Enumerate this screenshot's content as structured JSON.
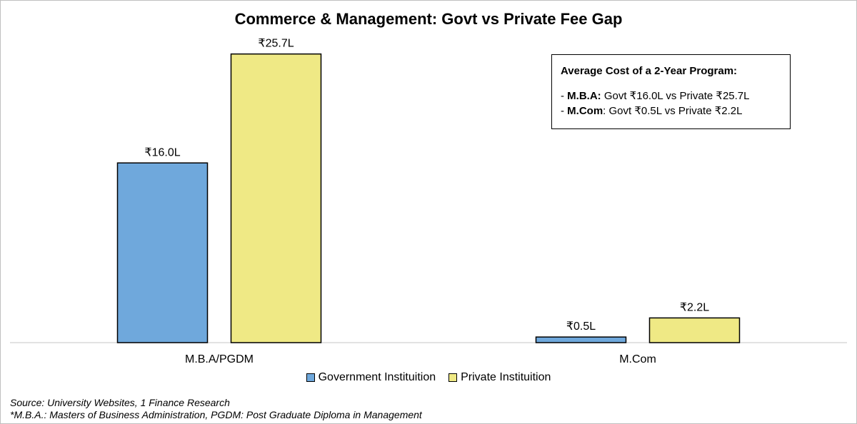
{
  "chart_data": {
    "type": "bar",
    "title": "Commerce & Management: Govt vs Private Fee Gap",
    "categories": [
      "M.B.A/PGDM",
      "M.Com"
    ],
    "series": [
      {
        "name": "Government Instituition",
        "values": [
          16.0,
          0.5
        ],
        "labels": [
          "₹16.0L",
          "₹0.5L"
        ],
        "color": "#6fa8dc"
      },
      {
        "name": "Private Instituition",
        "values": [
          25.7,
          2.2
        ],
        "labels": [
          "₹25.7L",
          "₹2.2L"
        ],
        "color": "#efe985"
      }
    ],
    "ylim": [
      0,
      28.6
    ],
    "grid": false,
    "legend_position": "bottom"
  },
  "info_box": {
    "heading": "Average Cost of a 2-Year Program:",
    "lines": [
      {
        "prefix": "- ",
        "bold": "M.B.A:",
        "rest": " Govt ₹16.0L vs Private ₹25.7L"
      },
      {
        "prefix": "- ",
        "bold": "M.Com",
        "rest": ": Govt ₹0.5L vs Private ₹2.2L"
      }
    ]
  },
  "footnotes": {
    "source": "Source: University Websites, 1 Finance Research",
    "note": "*M.B.A.: Masters of Business Administration, PGDM: Post Graduate Diploma in Management"
  }
}
